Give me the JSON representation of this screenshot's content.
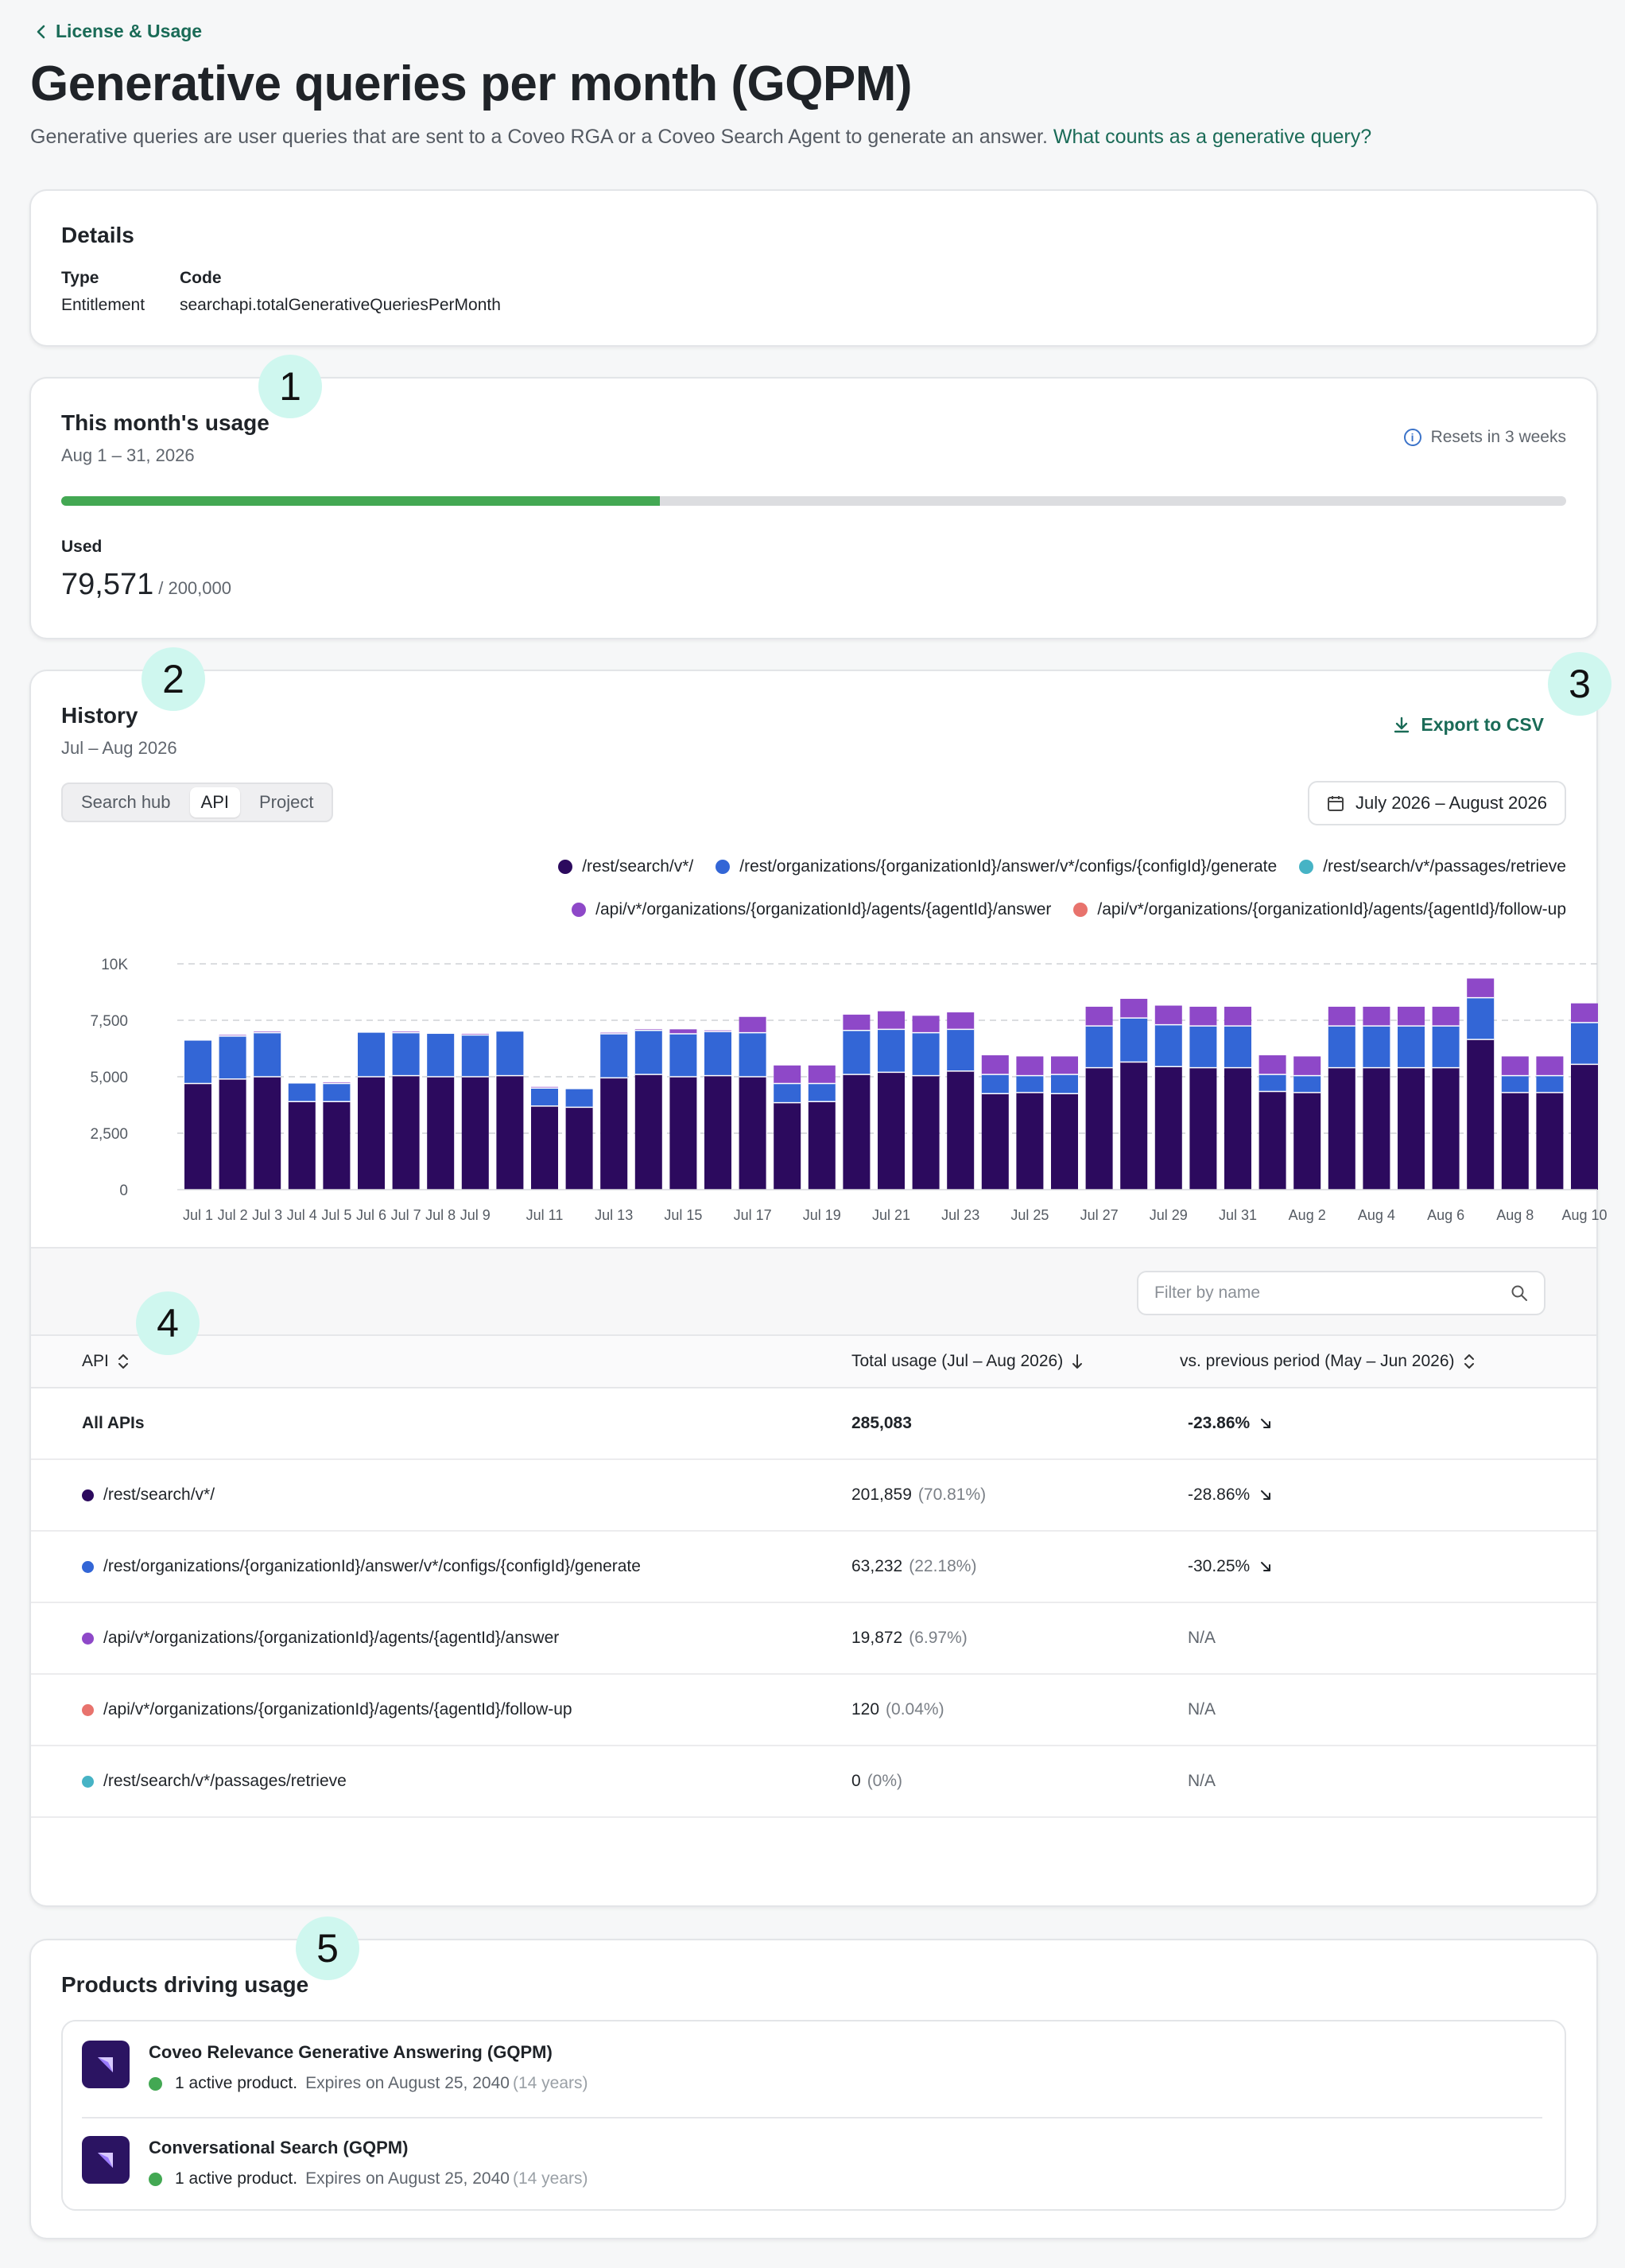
{
  "breadcrumb": {
    "label": "License & Usage"
  },
  "page": {
    "title": "Generative queries per month (GQPM)",
    "description": "Generative queries are user queries that are sent to a Coveo RGA or a Coveo Search Agent to generate an answer.",
    "help_link": "What counts as a generative query?"
  },
  "details": {
    "title": "Details",
    "type_label": "Type",
    "type_value": "Entitlement",
    "code_label": "Code",
    "code_value": "searchapi.totalGenerativeQueriesPerMonth"
  },
  "usage": {
    "title": "This month's usage",
    "period": "Aug 1 – 31, 2026",
    "resets": "Resets in 3 weeks",
    "used_label": "Used",
    "used_value": "79,571",
    "total": "/ 200,000",
    "fraction_used": 0.398
  },
  "history": {
    "title": "History",
    "period": "Jul – Aug 2026",
    "export_label": "Export to CSV",
    "tabs": [
      "Search hub",
      "API",
      "Project"
    ],
    "active_tab": "API",
    "date_range": "July 2026 – August 2026",
    "filter_placeholder": "Filter by name",
    "columns": {
      "api": "API",
      "total": "Total usage (Jul – Aug 2026)",
      "vs": "vs. previous period (May – Jun 2026)"
    },
    "rows": [
      {
        "name": "All APIs",
        "total": "285,083",
        "pct": "",
        "vs": "-23.86%",
        "color": "",
        "trend": "down"
      },
      {
        "name": "/rest/search/v*/",
        "total": "201,859",
        "pct": "(70.81%)",
        "vs": "-28.86%",
        "color": "#2c0a5e",
        "trend": "down"
      },
      {
        "name": "/rest/organizations/{organizationId}/answer/v*/configs/{configId}/generate",
        "total": "63,232",
        "pct": "(22.18%)",
        "vs": "-30.25%",
        "color": "#3366d6",
        "trend": "down"
      },
      {
        "name": "/api/v*/organizations/{organizationId}/agents/{agentId}/answer",
        "total": "19,872",
        "pct": "(6.97%)",
        "vs": "N/A",
        "color": "#8e48c8",
        "trend": "none"
      },
      {
        "name": "/api/v*/organizations/{organizationId}/agents/{agentId}/follow-up",
        "total": "120",
        "pct": "(0.04%)",
        "vs": "N/A",
        "color": "#e8736d",
        "trend": "none"
      },
      {
        "name": "/rest/search/v*/passages/retrieve",
        "total": "0",
        "pct": "(0%)",
        "vs": "N/A",
        "color": "#46b3c5",
        "trend": "none"
      }
    ]
  },
  "chart_data": {
    "type": "bar",
    "stacked": true,
    "ylim": [
      0,
      10000
    ],
    "yticks": [
      0,
      2500,
      5000,
      7500,
      10000
    ],
    "ytick_labels": [
      "0",
      "2,500",
      "5,000",
      "7,500",
      "10K"
    ],
    "gridlines": true,
    "legend_position": "top-right",
    "categories": [
      "Jul 1",
      "Jul 2",
      "Jul 3",
      "Jul 4",
      "Jul 5",
      "Jul 6",
      "Jul 7",
      "Jul 8",
      "Jul 9",
      "Jul 10",
      "Jul 11",
      "Jul 12",
      "Jul 13",
      "Jul 14",
      "Jul 15",
      "Jul 16",
      "Jul 17",
      "Jul 18",
      "Jul 19",
      "Jul 20",
      "Jul 21",
      "Jul 22",
      "Jul 23",
      "Jul 24",
      "Jul 25",
      "Jul 26",
      "Jul 27",
      "Jul 28",
      "Jul 29",
      "Jul 30",
      "Jul 31",
      "Aug 1",
      "Aug 2",
      "Aug 3",
      "Aug 4",
      "Aug 5",
      "Aug 6",
      "Aug 7",
      "Aug 8",
      "Aug 9",
      "Aug 10"
    ],
    "xtick_labels": [
      "Jul 1",
      "Jul 2",
      "Jul 3",
      "Jul 4",
      "Jul 5",
      "Jul 6",
      "Jul 7",
      "Jul 8",
      "Jul 9",
      "",
      "Jul 11",
      "",
      "Jul 13",
      "",
      "Jul 15",
      "",
      "Jul 17",
      "",
      "Jul 19",
      "",
      "Jul 21",
      "",
      "Jul 23",
      "",
      "Jul 25",
      "",
      "Jul 27",
      "",
      "Jul 29",
      "",
      "Jul 31",
      "",
      "Aug 2",
      "",
      "Aug 4",
      "",
      "Aug 6",
      "",
      "Aug 8",
      "",
      "Aug 10"
    ],
    "series": [
      {
        "name": "/rest/search/v*/",
        "color": "#2c0a5e",
        "values": [
          4700,
          4900,
          5000,
          3900,
          3900,
          5000,
          5050,
          5000,
          5000,
          5050,
          3700,
          3650,
          4950,
          5100,
          5000,
          5050,
          5000,
          3850,
          3900,
          5100,
          5200,
          5050,
          5250,
          4250,
          4300,
          4250,
          5400,
          5650,
          5450,
          5400,
          5400,
          4350,
          4300,
          5400,
          5400,
          5400,
          5400,
          6650,
          4300,
          4300,
          5550
        ]
      },
      {
        "name": "/rest/organizations/{organizationId}/answer/v*/configs/{configId}/generate",
        "color": "#3366d6",
        "values": [
          1900,
          1900,
          1950,
          800,
          800,
          1950,
          1900,
          1900,
          1850,
          1950,
          800,
          800,
          1950,
          1950,
          1900,
          1950,
          1950,
          850,
          800,
          1950,
          1900,
          1900,
          1850,
          850,
          750,
          850,
          1850,
          1950,
          1850,
          1850,
          1850,
          750,
          750,
          1850,
          1850,
          1850,
          1850,
          1850,
          750,
          750,
          1850
        ]
      },
      {
        "name": "/api/v*/organizations/{organizationId}/agents/{agentId}/answer",
        "color": "#8e48c8",
        "values": [
          50,
          50,
          50,
          50,
          50,
          50,
          50,
          50,
          50,
          50,
          50,
          50,
          50,
          50,
          50,
          50,
          50,
          50,
          50,
          50,
          50,
          50,
          50,
          50,
          50,
          50,
          50,
          50,
          50,
          50,
          50,
          50,
          50,
          50,
          50,
          50,
          50,
          50,
          50,
          50,
          50
        ]
      },
      {
        "name": "/api/v*/organizations/{organizationId}/agents/{agentId}/follow-up",
        "color": "#e8736d",
        "values": [
          0,
          0,
          0,
          0,
          0,
          0,
          0,
          0,
          0,
          0,
          0,
          0,
          0,
          0,
          0,
          0,
          0,
          0,
          0,
          0,
          0,
          0,
          0,
          0,
          0,
          0,
          0,
          0,
          0,
          0,
          0,
          0,
          0,
          0,
          0,
          0,
          0,
          0,
          0,
          0,
          0
        ]
      },
      {
        "name": "/rest/search/v*/passages/retrieve",
        "color": "#46b3c5",
        "values": [
          0,
          0,
          0,
          0,
          0,
          0,
          0,
          0,
          0,
          0,
          0,
          0,
          0,
          0,
          0,
          0,
          0,
          0,
          0,
          0,
          0,
          0,
          0,
          0,
          0,
          0,
          0,
          0,
          0,
          0,
          0,
          0,
          0,
          0,
          0,
          0,
          0,
          0,
          0,
          0,
          0
        ]
      }
    ],
    "top_layer": [
      0,
      50,
      50,
      0,
      50,
      0,
      50,
      0,
      50,
      0,
      50,
      0,
      50,
      50,
      200,
      50,
      700,
      800,
      800,
      700,
      800,
      750,
      750,
      850,
      850,
      800,
      850,
      850,
      850,
      850,
      850,
      850,
      850,
      850,
      850,
      850,
      850,
      850,
      850,
      850,
      850
    ],
    "legend_order": [
      0,
      1,
      4,
      2,
      3
    ]
  },
  "products": {
    "title": "Products driving usage",
    "items": [
      {
        "name": "Coveo Relevance Generative Answering (GQPM)",
        "status": "1 active product.",
        "expires": "Expires on August 25, 2040",
        "years": "(14 years)"
      },
      {
        "name": "Conversational Search (GQPM)",
        "status": "1 active product.",
        "expires": "Expires on August 25, 2040",
        "years": "(14 years)"
      }
    ]
  },
  "callouts": [
    "1",
    "2",
    "3",
    "4",
    "5"
  ]
}
